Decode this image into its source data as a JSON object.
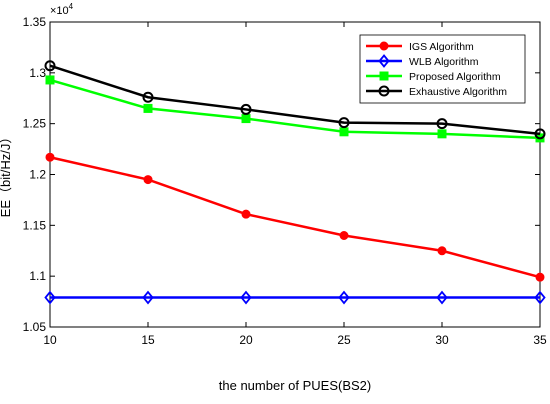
{
  "chart_data": {
    "type": "line",
    "xlabel": "the number of PUES(BS2)",
    "ylabel": "EE（bit/Hz/J）",
    "y_multiplier": "×10",
    "y_multiplier_exp": "4",
    "xlim": [
      10,
      35
    ],
    "ylim": [
      1.05,
      1.35
    ],
    "x_ticks": [
      10,
      15,
      20,
      25,
      30,
      35
    ],
    "x_tick_labels": [
      "10",
      "15",
      "20",
      "25",
      "30",
      "35"
    ],
    "y_ticks": [
      1.05,
      1.1,
      1.15,
      1.2,
      1.25,
      1.3,
      1.35
    ],
    "y_tick_labels": [
      "1.05",
      "1.1",
      "1.15",
      "1.2",
      "1.25",
      "1.3",
      "1.35"
    ],
    "grid": false,
    "legend_position": "top-right",
    "x": [
      10,
      15,
      20,
      25,
      30,
      35
    ],
    "series": [
      {
        "name": "IGS Algorithm",
        "color": "#ff0000",
        "marker": "circle-filled",
        "values": [
          1.217,
          1.195,
          1.161,
          1.14,
          1.125,
          1.099
        ]
      },
      {
        "name": "WLB Algorithm",
        "color": "#0000ff",
        "marker": "diamond-open",
        "values": [
          1.079,
          1.079,
          1.079,
          1.079,
          1.079,
          1.079
        ]
      },
      {
        "name": "Proposed Algorithm",
        "color": "#00ff00",
        "marker": "square-filled",
        "values": [
          1.293,
          1.265,
          1.255,
          1.242,
          1.24,
          1.236
        ]
      },
      {
        "name": "Exhaustive Algorithm",
        "color": "#000000",
        "marker": "circle-open",
        "values": [
          1.307,
          1.276,
          1.264,
          1.251,
          1.25,
          1.24
        ]
      }
    ]
  }
}
